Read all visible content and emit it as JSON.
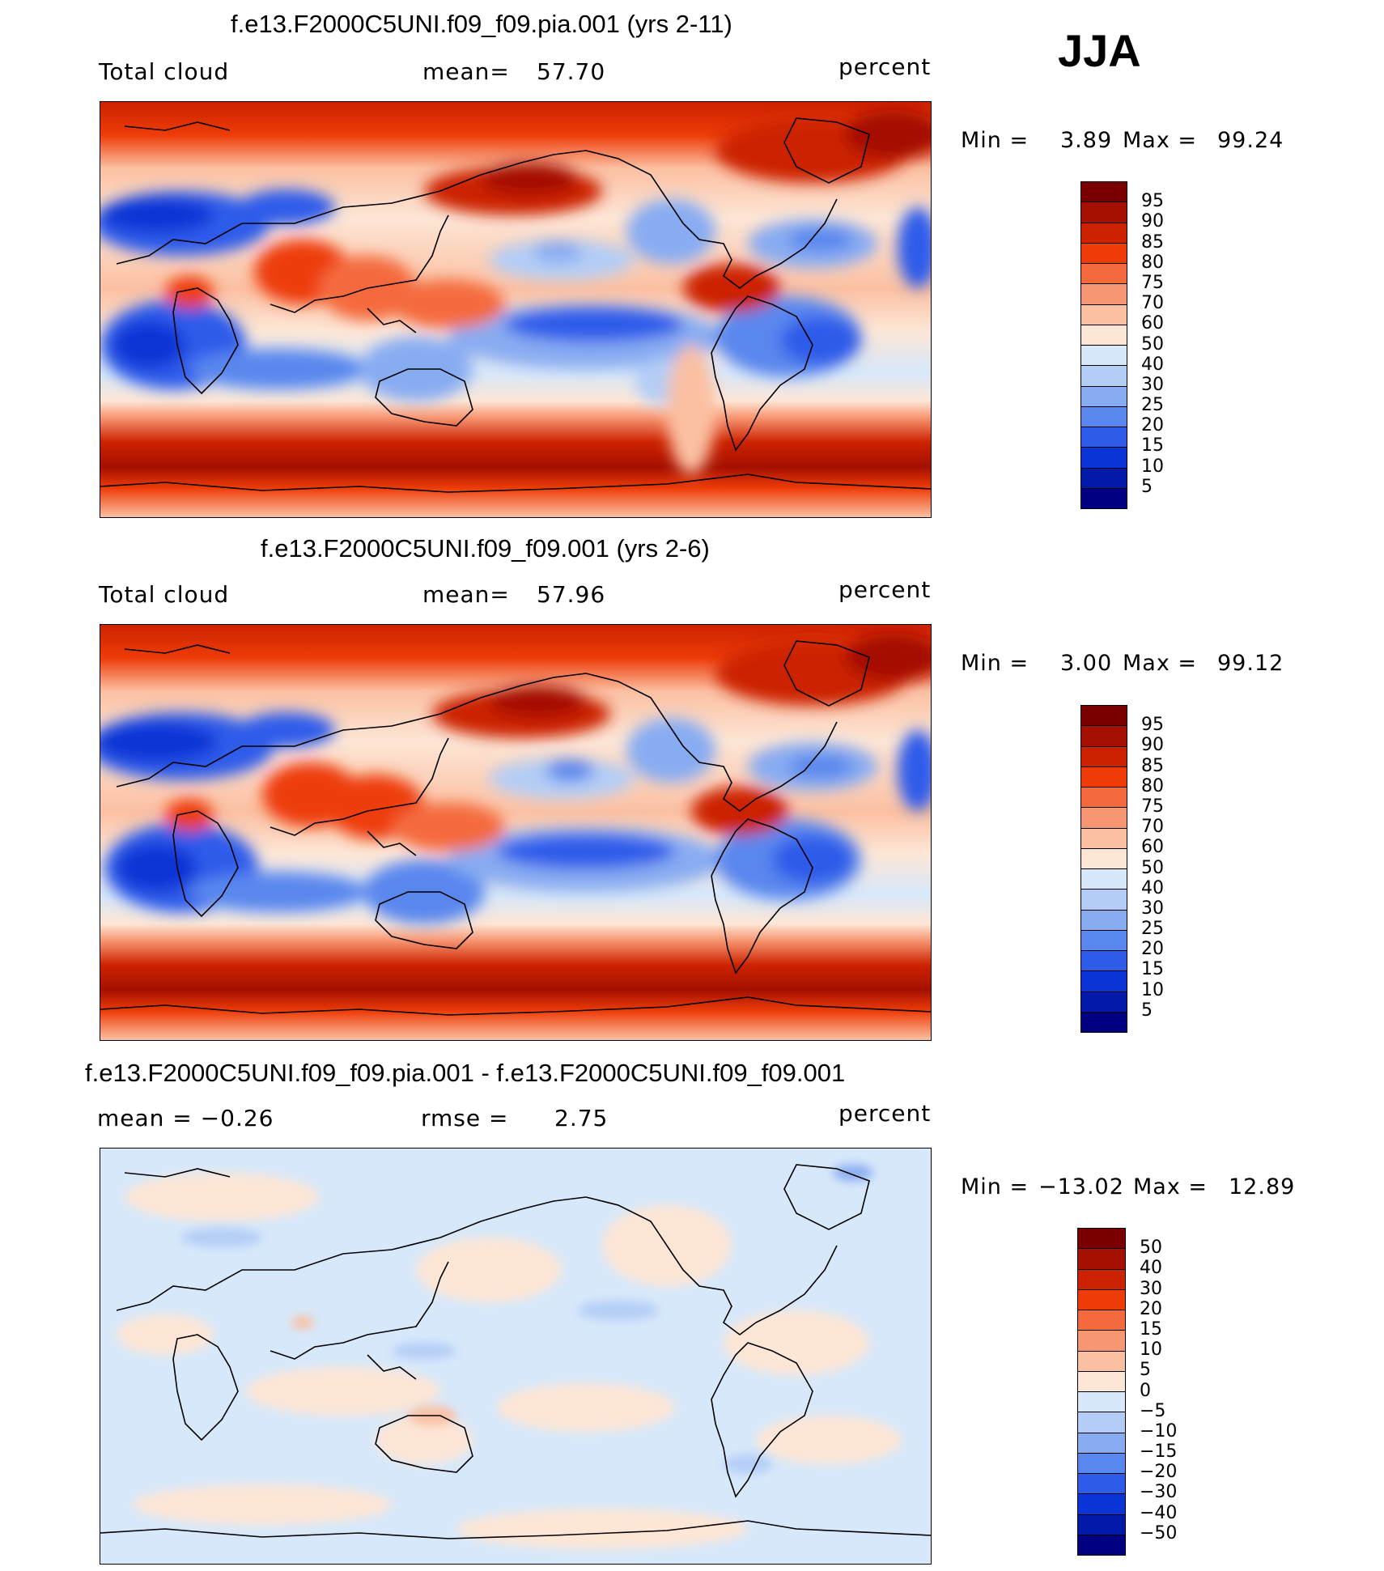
{
  "season": "JJA",
  "panels": [
    {
      "title": "f.e13.F2000C5UNI.f09_f09.pia.001 (yrs 2-11)",
      "left": "Total cloud",
      "mid_label": "mean=",
      "mid_value": "57.70",
      "right": "",
      "units": "percent",
      "min_label": "Min =",
      "min": "3.89",
      "max_label": "Max =",
      "max": "99.24",
      "legend_labels": [
        "95",
        "90",
        "85",
        "80",
        "75",
        "70",
        "60",
        "50",
        "40",
        "30",
        "25",
        "20",
        "15",
        "10",
        "5"
      ]
    },
    {
      "title": "f.e13.F2000C5UNI.f09_f09.001 (yrs 2-6)",
      "left": "Total cloud",
      "mid_label": "mean=",
      "mid_value": "57.96",
      "right": "",
      "units": "percent",
      "min_label": "Min =",
      "min": "3.00",
      "max_label": "Max =",
      "max": "99.12",
      "legend_labels": [
        "95",
        "90",
        "85",
        "80",
        "75",
        "70",
        "60",
        "50",
        "40",
        "30",
        "25",
        "20",
        "15",
        "10",
        "5"
      ]
    },
    {
      "title": "f.e13.F2000C5UNI.f09_f09.pia.001 - f.e13.F2000C5UNI.f09_f09.001",
      "left": "mean =   −0.26",
      "mid_label": "rmse =",
      "mid_value": "2.75",
      "right": "",
      "units": "percent",
      "min_label": "Min =",
      "min": "−13.02",
      "max_label": "Max =",
      "max": "12.89",
      "legend_labels": [
        "50",
        "40",
        "30",
        "20",
        "15",
        "10",
        "5",
        "0",
        "−5",
        "−10",
        "−15",
        "−20",
        "−30",
        "−40",
        "−50"
      ]
    }
  ],
  "colors": {
    "abs_scale": [
      "#7a0000",
      "#a51000",
      "#cc2200",
      "#ee3c08",
      "#f46a3c",
      "#f79672",
      "#fbc0a2",
      "#fde6d6",
      "#d7e8fa",
      "#b3cdf6",
      "#88acf2",
      "#5a87ee",
      "#2d5cea",
      "#0a34d6",
      "#0019a8",
      "#000080"
    ],
    "diff_scale": [
      "#7a0000",
      "#a51000",
      "#cc2200",
      "#ee3c08",
      "#f46a3c",
      "#f79672",
      "#fbc0a2",
      "#fde6d6",
      "#d7e8fa",
      "#b3cdf6",
      "#88acf2",
      "#5a87ee",
      "#2d5cea",
      "#0a34d6",
      "#0019a8",
      "#000080"
    ]
  }
}
